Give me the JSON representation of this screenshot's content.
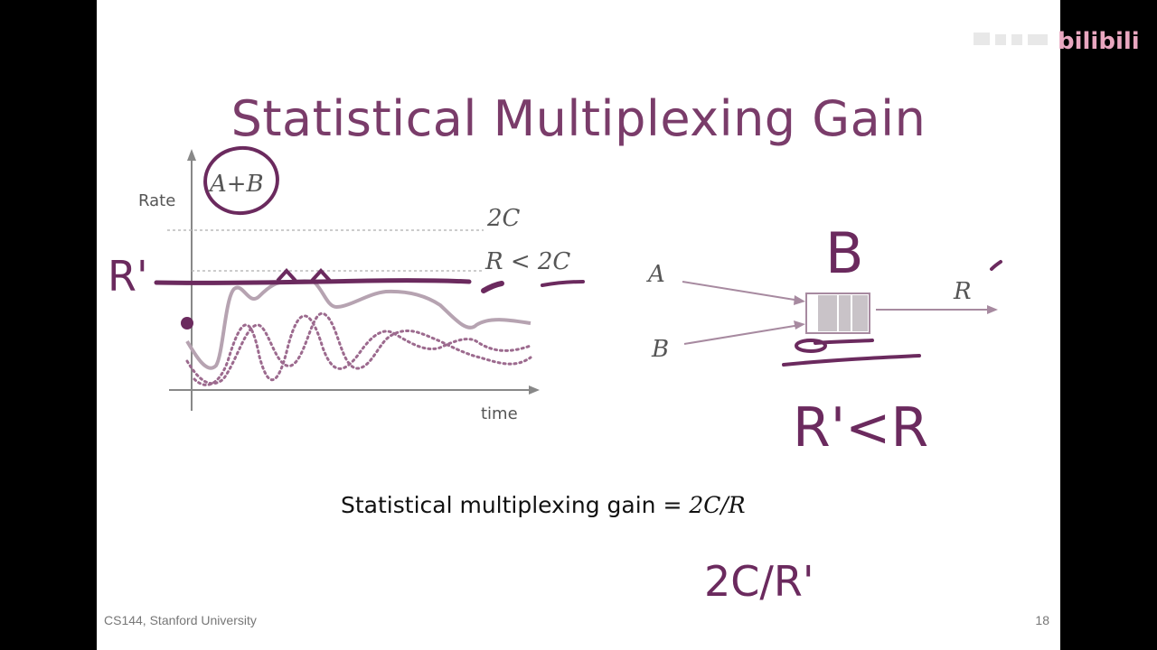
{
  "slide": {
    "title": "Statistical Multiplexing Gain",
    "footer_left": "CS144, Stanford University",
    "page_number": "18"
  },
  "graph": {
    "y_axis_label": "Rate",
    "x_axis_label": "time",
    "line_2c_label": "2C",
    "line_r_label": "R < 2C"
  },
  "queue_diagram": {
    "input_a": "A",
    "input_b": "B",
    "output_label": "R"
  },
  "formula": {
    "text": "Statistical multiplexing gain = ",
    "math": "2C/R"
  },
  "annotations": {
    "circled_label": "A+B",
    "r_prime": "R'",
    "handwritten_b": "B",
    "inequality": "R'<R",
    "gain_prime": "2C/R'"
  },
  "colors": {
    "title": "#7a3c6a",
    "ink": "#6b2a5e",
    "curve": "#a78aa0"
  },
  "watermark": "bilibili"
}
